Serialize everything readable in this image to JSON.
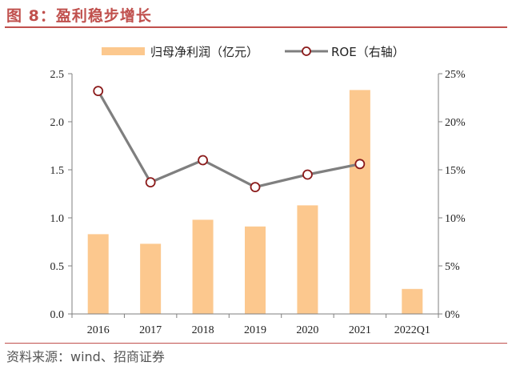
{
  "figure": {
    "title": "图 8：盈利稳步增长",
    "source": "资料来源：wind、招商证券"
  },
  "colors": {
    "accent": "#c0504d",
    "bar": "#fcc88e",
    "line": "#7f7f7f",
    "marker_edge": "#8b1a1a"
  },
  "chart_data": {
    "type": "bar+line",
    "categories": [
      "2016",
      "2017",
      "2018",
      "2019",
      "2020",
      "2021",
      "2022Q1"
    ],
    "series": [
      {
        "name": "归母净利润（亿元）",
        "type": "bar",
        "axis": "left",
        "values": [
          0.83,
          0.73,
          0.98,
          0.91,
          1.13,
          2.33,
          0.26
        ]
      },
      {
        "name": "ROE（右轴）",
        "type": "line",
        "axis": "right",
        "values": [
          0.232,
          0.137,
          0.16,
          0.132,
          0.145,
          0.156,
          null
        ]
      }
    ],
    "y_left": {
      "ylim": [
        0,
        2.5
      ],
      "ticks": [
        "0.0",
        "0.5",
        "1.0",
        "1.5",
        "2.0",
        "2.5"
      ]
    },
    "y_right": {
      "ylim": [
        0,
        0.25
      ],
      "ticks": [
        "0%",
        "5%",
        "10%",
        "15%",
        "20%",
        "25%"
      ]
    },
    "grid": false,
    "legend_position": "top"
  }
}
